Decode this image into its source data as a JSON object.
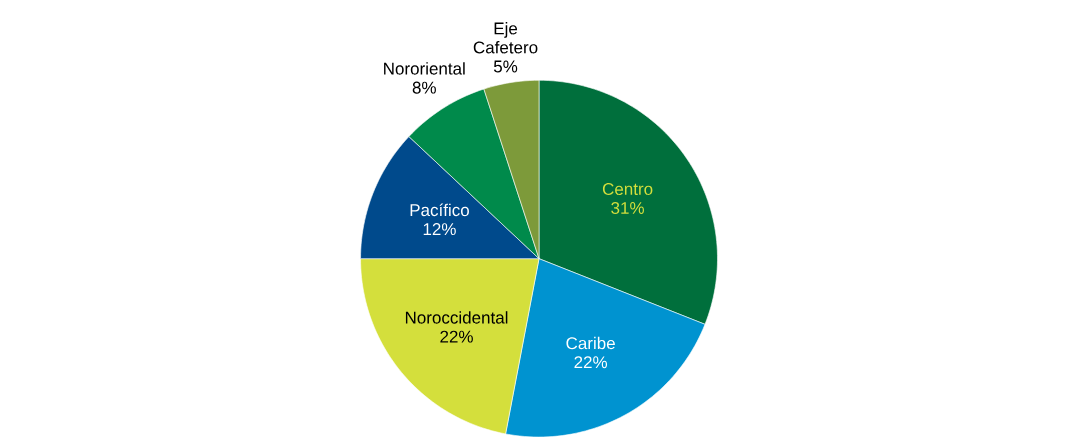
{
  "chart_data": {
    "type": "pie",
    "categories": [
      "Centro",
      "Caribe",
      "Noroccidental",
      "Pacífico",
      "Nororiental",
      "Eje Cafetero"
    ],
    "values": [
      31,
      22,
      22,
      12,
      8,
      5
    ],
    "value_labels": [
      "31%",
      "22%",
      "22%",
      "12%",
      "8%",
      "5%"
    ],
    "colors": [
      "#006f3c",
      "#0093d0",
      "#d4df3c",
      "#004a8c",
      "#008a4b",
      "#7d9a3a"
    ]
  }
}
